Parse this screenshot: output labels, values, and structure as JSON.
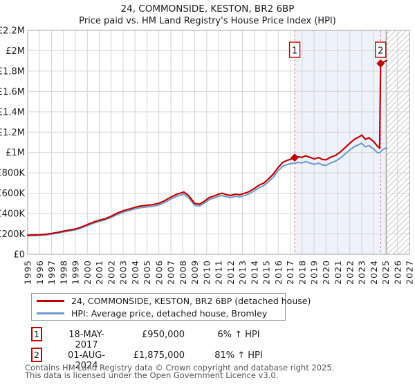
{
  "title": "24, COMMONSIDE, KESTON, BR2 6BP",
  "subtitle": "Price paid vs. HM Land Registry's House Price Index (HPI)",
  "chart_data": {
    "type": "line",
    "x_axis": {
      "min": 1995,
      "max": 2027,
      "tick_step": 1
    },
    "y_axis": {
      "min": 0,
      "max": 2200000,
      "tick_step": 200000,
      "tick_labels": [
        "£0",
        "£200K",
        "£400K",
        "£600K",
        "£800K",
        "£1M",
        "£1.2M",
        "£1.4M",
        "£1.6M",
        "£1.8M",
        "£2M",
        "£2.2M"
      ]
    },
    "grid": true,
    "legend_position": "bottom",
    "shaded_region": {
      "from": 2017.38,
      "to": 2025.08
    },
    "hatched_region": {
      "from": 2025.08,
      "to": 2027
    },
    "colors": {
      "property": "#c00000",
      "hpi": "#6a98ca",
      "shade": "#eef2fb",
      "dashed": "#e57373",
      "grid": "#d4d4d4",
      "border": "#a0a0a0",
      "hatch": "#c8c8c8",
      "hatch_edge": "#909090",
      "tick_text": "#222222"
    },
    "sales": [
      {
        "n": "1",
        "x": 2017.38,
        "price": 950000
      },
      {
        "n": "2",
        "x": 2024.58,
        "price": 1875000
      }
    ],
    "series": [
      {
        "id": "property",
        "name": "24, COMMONSIDE, KESTON, BR2 6BP (detached house)",
        "color": "#c00000",
        "width": 2.2,
        "points": [
          [
            1995.0,
            188000
          ],
          [
            1995.5,
            190000
          ],
          [
            1996.0,
            192000
          ],
          [
            1996.5,
            196000
          ],
          [
            1997.0,
            205000
          ],
          [
            1997.5,
            215000
          ],
          [
            1998.0,
            228000
          ],
          [
            1998.5,
            238000
          ],
          [
            1999.0,
            248000
          ],
          [
            1999.5,
            268000
          ],
          [
            2000.0,
            292000
          ],
          [
            2000.5,
            315000
          ],
          [
            2001.0,
            335000
          ],
          [
            2001.5,
            350000
          ],
          [
            2002.0,
            375000
          ],
          [
            2002.5,
            405000
          ],
          [
            2003.0,
            428000
          ],
          [
            2003.5,
            445000
          ],
          [
            2004.0,
            462000
          ],
          [
            2004.5,
            475000
          ],
          [
            2005.0,
            482000
          ],
          [
            2005.5,
            488000
          ],
          [
            2006.0,
            502000
          ],
          [
            2006.5,
            528000
          ],
          [
            2007.0,
            562000
          ],
          [
            2007.5,
            590000
          ],
          [
            2008.1,
            612000
          ],
          [
            2008.5,
            575000
          ],
          [
            2009.0,
            500000
          ],
          [
            2009.4,
            492000
          ],
          [
            2009.8,
            520000
          ],
          [
            2010.2,
            556000
          ],
          [
            2010.6,
            572000
          ],
          [
            2011.0,
            590000
          ],
          [
            2011.3,
            600000
          ],
          [
            2011.6,
            588000
          ],
          [
            2012.0,
            578000
          ],
          [
            2012.4,
            590000
          ],
          [
            2012.8,
            585000
          ],
          [
            2013.2,
            600000
          ],
          [
            2013.6,
            618000
          ],
          [
            2014.0,
            648000
          ],
          [
            2014.4,
            680000
          ],
          [
            2014.8,
            700000
          ],
          [
            2015.2,
            742000
          ],
          [
            2015.6,
            790000
          ],
          [
            2016.0,
            855000
          ],
          [
            2016.4,
            905000
          ],
          [
            2016.8,
            925000
          ],
          [
            2017.0,
            932000
          ],
          [
            2017.38,
            950000
          ],
          [
            2017.7,
            958000
          ],
          [
            2018.0,
            952000
          ],
          [
            2018.3,
            968000
          ],
          [
            2018.6,
            955000
          ],
          [
            2019.0,
            938000
          ],
          [
            2019.4,
            950000
          ],
          [
            2019.7,
            932000
          ],
          [
            2020.0,
            928000
          ],
          [
            2020.4,
            955000
          ],
          [
            2020.8,
            972000
          ],
          [
            2021.2,
            1005000
          ],
          [
            2021.6,
            1048000
          ],
          [
            2022.0,
            1092000
          ],
          [
            2022.4,
            1132000
          ],
          [
            2022.8,
            1155000
          ],
          [
            2023.0,
            1172000
          ],
          [
            2023.3,
            1130000
          ],
          [
            2023.6,
            1145000
          ],
          [
            2024.0,
            1108000
          ],
          [
            2024.3,
            1065000
          ],
          [
            2024.5,
            1042000
          ],
          [
            2024.58,
            1875000
          ],
          [
            2024.8,
            1888000
          ],
          [
            2025.08,
            1902000
          ]
        ]
      },
      {
        "id": "hpi",
        "name": "HPI: Average price, detached house, Bromley",
        "color": "#6a98ca",
        "width": 2,
        "points": [
          [
            1995.0,
            182000
          ],
          [
            1995.5,
            184000
          ],
          [
            1996.0,
            186000
          ],
          [
            1996.5,
            190000
          ],
          [
            1997.0,
            198000
          ],
          [
            1997.5,
            208000
          ],
          [
            1998.0,
            220000
          ],
          [
            1998.5,
            230000
          ],
          [
            1999.0,
            240000
          ],
          [
            1999.5,
            259000
          ],
          [
            2000.0,
            282000
          ],
          [
            2000.5,
            304000
          ],
          [
            2001.0,
            323000
          ],
          [
            2001.5,
            338000
          ],
          [
            2002.0,
            362000
          ],
          [
            2002.5,
            391000
          ],
          [
            2003.0,
            413000
          ],
          [
            2003.5,
            430000
          ],
          [
            2004.0,
            446000
          ],
          [
            2004.5,
            458000
          ],
          [
            2005.0,
            465000
          ],
          [
            2005.5,
            471000
          ],
          [
            2006.0,
            485000
          ],
          [
            2006.5,
            510000
          ],
          [
            2007.0,
            543000
          ],
          [
            2007.5,
            570000
          ],
          [
            2008.1,
            590000
          ],
          [
            2008.5,
            553000
          ],
          [
            2009.0,
            482000
          ],
          [
            2009.4,
            474000
          ],
          [
            2009.8,
            502000
          ],
          [
            2010.2,
            537000
          ],
          [
            2010.6,
            552000
          ],
          [
            2011.0,
            569000
          ],
          [
            2011.3,
            578000
          ],
          [
            2011.6,
            567000
          ],
          [
            2012.0,
            557000
          ],
          [
            2012.4,
            569000
          ],
          [
            2012.8,
            564000
          ],
          [
            2013.2,
            578000
          ],
          [
            2013.6,
            596000
          ],
          [
            2014.0,
            625000
          ],
          [
            2014.4,
            655000
          ],
          [
            2014.8,
            675000
          ],
          [
            2015.2,
            715000
          ],
          [
            2015.6,
            760000
          ],
          [
            2016.0,
            822000
          ],
          [
            2016.4,
            868000
          ],
          [
            2016.8,
            885000
          ],
          [
            2017.0,
            890000
          ],
          [
            2017.38,
            896000
          ],
          [
            2017.7,
            903000
          ],
          [
            2018.0,
            898000
          ],
          [
            2018.3,
            912000
          ],
          [
            2018.6,
            900000
          ],
          [
            2019.0,
            884000
          ],
          [
            2019.4,
            895000
          ],
          [
            2019.7,
            878000
          ],
          [
            2020.0,
            874000
          ],
          [
            2020.4,
            898000
          ],
          [
            2020.8,
            915000
          ],
          [
            2021.2,
            945000
          ],
          [
            2021.6,
            985000
          ],
          [
            2022.0,
            1025000
          ],
          [
            2022.4,
            1060000
          ],
          [
            2022.8,
            1080000
          ],
          [
            2023.0,
            1092000
          ],
          [
            2023.3,
            1055000
          ],
          [
            2023.6,
            1068000
          ],
          [
            2024.0,
            1035000
          ],
          [
            2024.3,
            1000000
          ],
          [
            2024.5,
            996000
          ],
          [
            2024.58,
            1010000
          ],
          [
            2024.8,
            1032000
          ],
          [
            2025.08,
            1048000
          ]
        ]
      }
    ]
  },
  "legend": {
    "items": [
      {
        "label": "24, COMMONSIDE, KESTON, BR2 6BP (detached house)",
        "color": "#c00000"
      },
      {
        "label": "HPI: Average price, detached house, Bromley",
        "color": "#6a98ca"
      }
    ]
  },
  "transactions": [
    {
      "n": "1",
      "date": "18-MAY-2017",
      "price": "£950,000",
      "hpi_change": "6% ↑ HPI"
    },
    {
      "n": "2",
      "date": "01-AUG-2024",
      "price": "£1,875,000",
      "hpi_change": "81% ↑ HPI"
    }
  ],
  "footer": {
    "line1": "Contains HM Land Registry data © Crown copyright and database right 2025.",
    "line2": "This data is licensed under the Open Government Licence v3.0."
  }
}
